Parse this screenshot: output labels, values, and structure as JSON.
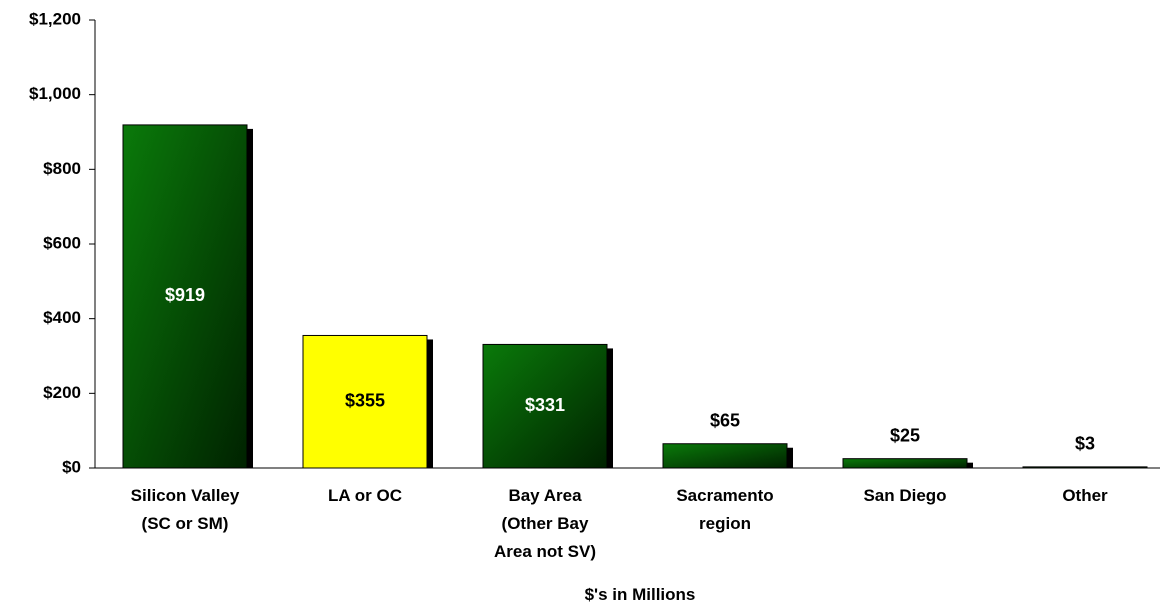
{
  "chart_data": {
    "type": "bar",
    "categories": [
      "Silicon Valley\n(SC or SM)",
      "LA or OC",
      "Bay Area\n(Other Bay\nArea not SV)",
      "Sacramento\nregion",
      "San Diego",
      "Other"
    ],
    "values": [
      919,
      355,
      331,
      65,
      25,
      3
    ],
    "value_labels": [
      "$919",
      "$355",
      "$331",
      "$65",
      "$25",
      "$3"
    ],
    "colors": [
      "#0a7a0a",
      "#ffff00",
      "#0a7a0a",
      "#0a7a0a",
      "#0a7a0a",
      "#0a7a0a"
    ],
    "ylim": [
      0,
      1200
    ],
    "yticks": [
      {
        "value": 0,
        "label": "$0"
      },
      {
        "value": 200,
        "label": "$200"
      },
      {
        "value": 400,
        "label": "$400"
      },
      {
        "value": 600,
        "label": "$600"
      },
      {
        "value": 800,
        "label": "$800"
      },
      {
        "value": 1000,
        "label": "$1,000"
      },
      {
        "value": 1200,
        "label": "$1,200"
      }
    ],
    "x_label": "$'s in Millions"
  }
}
